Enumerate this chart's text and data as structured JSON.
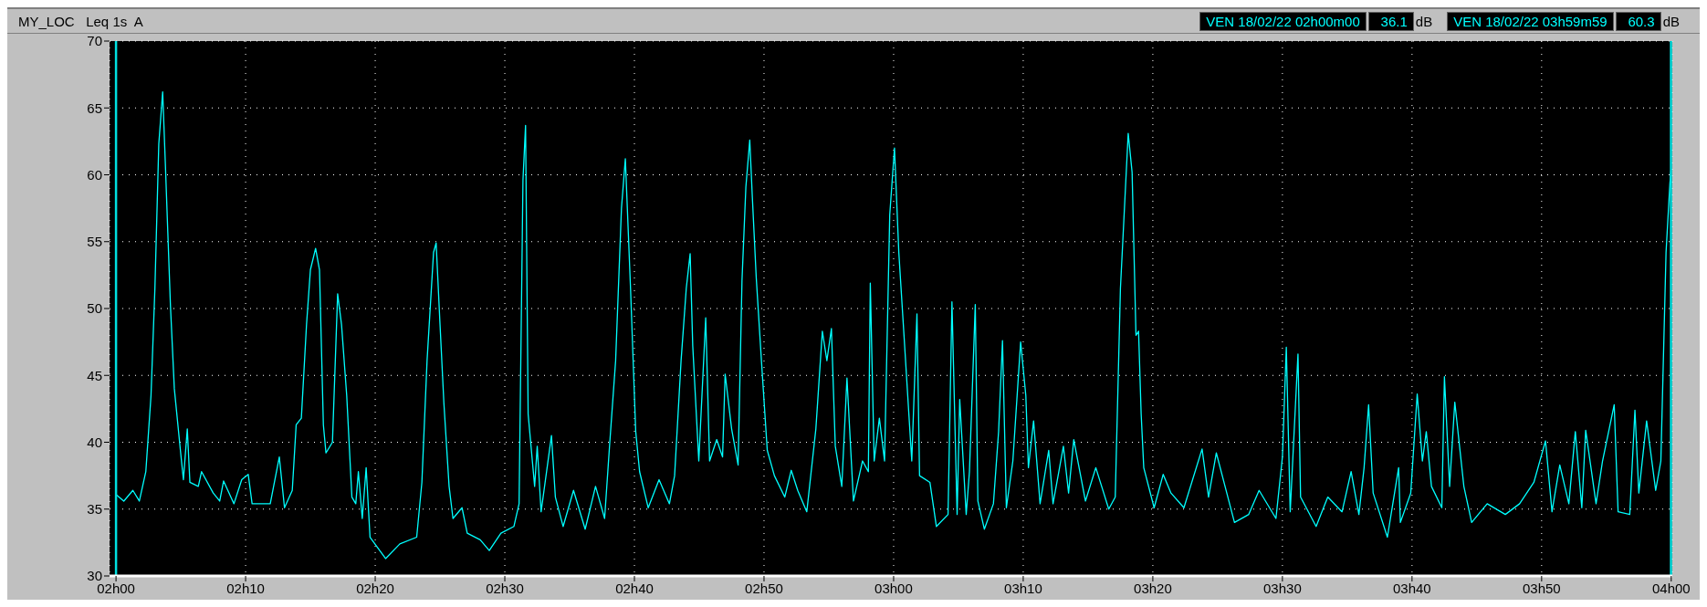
{
  "chart_data": {
    "type": "line",
    "title": "MY_LOC   Leq 1s  A",
    "annotations": [
      "VEN 18/02/22 02h00m00",
      "36.1",
      "dB",
      "VEN 18/02/22 03h59m59",
      "60.3",
      "dB"
    ],
    "xlim": [
      "--02-18T01:59:30",
      "--02-18T04:00:05"
    ],
    "xticks": [
      {
        "value": "--02-18T02:00",
        "label": "02h00"
      },
      {
        "value": "--02-18T02:10",
        "label": "02h10"
      },
      {
        "value": "--02-18T02:20",
        "label": "02h20"
      },
      {
        "value": "--02-18T02:30",
        "label": "02h30"
      },
      {
        "value": "--02-18T02:40",
        "label": "02h40"
      },
      {
        "value": "--02-18T02:50",
        "label": "02h50"
      },
      {
        "value": "--02-18T03:00",
        "label": "03h00"
      },
      {
        "value": "--02-18T03:10",
        "label": "03h10"
      },
      {
        "value": "--02-18T03:20",
        "label": "03h20"
      },
      {
        "value": "--02-18T03:30",
        "label": "03h30"
      },
      {
        "value": "--02-18T03:40",
        "label": "03h40"
      },
      {
        "value": "--02-18T03:50",
        "label": "03h50"
      },
      {
        "value": "--02-18T04:00",
        "label": "04h00"
      }
    ],
    "ylim": [
      30,
      70
    ],
    "yticks": [
      30,
      35,
      40,
      45,
      50,
      55,
      60,
      65,
      70
    ],
    "grid": true,
    "ref_lines": [
      {
        "axis": "x",
        "value": "--02-18T02:00",
        "color": "#00e0e0"
      },
      {
        "axis": "x",
        "value": "--02-18T03:59:59",
        "color": "#00e0e0"
      }
    ],
    "x": [
      "--02-18T02:00:00",
      "--02-18T02:00:36",
      "--02-18T02:01:18",
      "--02-18T02:01:48",
      "--02-18T02:02:18",
      "--02-18T02:02:42",
      "--02-18T02:03:00",
      "--02-18T02:03:18",
      "--02-18T02:03:36",
      "--02-18T02:03:48",
      "--02-18T02:04:12",
      "--02-18T02:04:30",
      "--02-18T02:04:58",
      "--02-18T02:05:12",
      "--02-18T02:05:30",
      "--02-18T02:05:42",
      "--02-18T02:06:21",
      "--02-18T02:06:36",
      "--02-18T02:07:30",
      "--02-18T02:08:00",
      "--02-18T02:08:18",
      "--02-18T02:09:06",
      "--02-18T02:09:42",
      "--02-18T02:10:12",
      "--02-18T02:10:30",
      "--02-18T02:11:54",
      "--02-18T02:12:36",
      "--02-18T02:13:00",
      "--02-18T02:13:36",
      "--02-18T02:13:54",
      "--02-18T02:14:18",
      "--02-18T02:14:42",
      "--02-18T02:15:00",
      "--02-18T02:15:24",
      "--02-18T02:15:42",
      "--02-18T02:16:00",
      "--02-18T02:16:12",
      "--02-18T02:16:42",
      "--02-18T02:17:06",
      "--02-18T02:17:24",
      "--02-18T02:17:48",
      "--02-18T02:18:12",
      "--02-18T02:18:30",
      "--02-18T02:18:42",
      "--02-18T02:19:00",
      "--02-18T02:19:18",
      "--02-18T02:19:36",
      "--02-18T02:20:48",
      "--02-18T02:21:54",
      "--02-18T02:23:12",
      "--02-18T02:23:36",
      "--02-18T02:24:00",
      "--02-18T02:24:30",
      "--02-18T02:24:42",
      "--02-18T02:25:00",
      "--02-18T02:25:18",
      "--02-18T02:25:42",
      "--02-18T02:26:00",
      "--02-18T02:26:42",
      "--02-18T02:27:06",
      "--02-18T02:28:06",
      "--02-18T02:28:48",
      "--02-18T02:29:42",
      "--02-18T02:30:42",
      "--02-18T02:31:06",
      "--02-18T02:31:24",
      "--02-18T02:31:36",
      "--02-18T02:31:48",
      "--02-18T02:32:18",
      "--02-18T02:32:30",
      "--02-18T02:32:48",
      "--02-18T02:33:36",
      "--02-18T02:33:54",
      "--02-18T02:34:30",
      "--02-18T02:35:18",
      "--02-18T02:36:12",
      "--02-18T02:37:00",
      "--02-18T02:37:42",
      "--02-18T02:38:06",
      "--02-18T02:38:33",
      "--02-18T02:39:00",
      "--02-18T02:39:18",
      "--02-18T02:39:42",
      "--02-18T02:40:06",
      "--02-18T02:40:24",
      "--02-18T02:41:04",
      "--02-18T02:41:54",
      "--02-18T02:42:42",
      "--02-18T02:43:06",
      "--02-18T02:43:36",
      "--02-18T02:44:00",
      "--02-18T02:44:18",
      "--02-18T02:44:30",
      "--02-18T02:44:58",
      "--02-18T02:45:30",
      "--02-18T02:45:48",
      "--02-18T02:46:21",
      "--02-18T02:46:48",
      "--02-18T02:47:00",
      "--02-18T02:47:30",
      "--02-18T02:48:00",
      "--02-18T02:48:18",
      "--02-18T02:48:36",
      "--02-18T02:48:54",
      "--02-18T02:49:06",
      "--02-18T02:49:24",
      "--02-18T02:49:48",
      "--02-18T02:50:15",
      "--02-18T02:50:48",
      "--02-18T02:51:36",
      "--02-18T02:52:06",
      "--02-18T02:52:36",
      "--02-18T02:53:18",
      "--02-18T02:54:00",
      "--02-18T02:54:30",
      "--02-18T02:54:51",
      "--02-18T02:55:12",
      "--02-18T02:55:30",
      "--02-18T02:56:00",
      "--02-18T02:56:24",
      "--02-18T02:56:54",
      "--02-18T02:57:36",
      "--02-18T02:58:03",
      "--02-18T02:58:12",
      "--02-18T02:58:30",
      "--02-18T02:58:54",
      "--02-18T02:59:18",
      "--02-18T02:59:42",
      "--02-18T03:00:04",
      "--02-18T03:00:24",
      "--02-18T03:00:48",
      "--02-18T03:01:24",
      "--02-18T03:01:48",
      "--02-18T03:02:00",
      "--02-18T03:02:48",
      "--02-18T03:03:18",
      "--02-18T03:04:12",
      "--02-18T03:04:30",
      "--02-18T03:04:54",
      "--02-18T03:05:06",
      "--02-18T03:05:36",
      "--02-18T03:05:51",
      "--02-18T03:06:18",
      "--02-18T03:06:30",
      "--02-18T03:07:00",
      "--02-18T03:07:42",
      "--02-18T03:08:06",
      "--02-18T03:08:24",
      "--02-18T03:08:42",
      "--02-18T03:09:12",
      "--02-18T03:09:48",
      "--02-18T03:10:12",
      "--02-18T03:10:24",
      "--02-18T03:10:48",
      "--02-18T03:11:18",
      "--02-18T03:11:58",
      "--02-18T03:12:18",
      "--02-18T03:13:06",
      "--02-18T03:13:30",
      "--02-18T03:13:54",
      "--02-18T03:14:48",
      "--02-18T03:15:36",
      "--02-18T03:16:36",
      "--02-18T03:17:06",
      "--02-18T03:17:30",
      "--02-18T03:18:06",
      "--02-18T03:18:24",
      "--02-18T03:18:42",
      "--02-18T03:18:54",
      "--02-18T03:19:06",
      "--02-18T03:19:18",
      "--02-18T03:20:06",
      "--02-18T03:20:48",
      "--02-18T03:21:24",
      "--02-18T03:22:24",
      "--02-18T03:23:48",
      "--02-18T03:24:18",
      "--02-18T03:24:54",
      "--02-18T03:26:18",
      "--02-18T03:27:24",
      "--02-18T03:28:12",
      "--02-18T03:29:30",
      "--02-18T03:30:00",
      "--02-18T03:30:18",
      "--02-18T03:30:36",
      "--02-18T03:31:12",
      "--02-18T03:31:24",
      "--02-18T03:32:36",
      "--02-18T03:33:30",
      "--02-18T03:34:36",
      "--02-18T03:35:18",
      "--02-18T03:35:54",
      "--02-18T03:36:18",
      "--02-18T03:36:39",
      "--02-18T03:37:00",
      "--02-18T03:38:06",
      "--02-18T03:38:58",
      "--02-18T03:39:06",
      "--02-18T03:39:54",
      "--02-18T03:40:24",
      "--02-18T03:40:48",
      "--02-18T03:41:06",
      "--02-18T03:41:30",
      "--02-18T03:42:18",
      "--02-18T03:42:30",
      "--02-18T03:42:54",
      "--02-18T03:43:18",
      "--02-18T03:44:00",
      "--02-18T03:44:36",
      "--02-18T03:45:48",
      "--02-18T03:47:12",
      "--02-18T03:48:18",
      "--02-18T03:49:24",
      "--02-18T03:50:18",
      "--02-18T03:50:48",
      "--02-18T03:51:24",
      "--02-18T03:52:06",
      "--02-18T03:52:36",
      "--02-18T03:53:06",
      "--02-18T03:53:24",
      "--02-18T03:54:12",
      "--02-18T03:54:42",
      "--02-18T03:55:36",
      "--02-18T03:55:54",
      "--02-18T03:56:48",
      "--02-18T03:57:12",
      "--02-18T03:57:30",
      "--02-18T03:58:06",
      "--02-18T03:58:48",
      "--02-18T03:59:12",
      "--02-18T03:59:36",
      "--02-18T03:59:54",
      "--02-18T03:59:59"
    ],
    "series": [
      {
        "color": "#00ffff",
        "values": [
          36.1,
          35.6,
          36.4,
          35.6,
          37.8,
          43.5,
          51.5,
          62.3,
          66.2,
          61.0,
          50.2,
          44.0,
          39.4,
          37.2,
          41.0,
          37.0,
          36.7,
          37.8,
          36.2,
          35.6,
          37.1,
          35.4,
          37.2,
          37.6,
          35.4,
          35.4,
          38.9,
          35.1,
          36.4,
          41.3,
          41.8,
          48.8,
          52.9,
          54.5,
          52.9,
          41.3,
          39.2,
          40.0,
          51.1,
          48.8,
          43.5,
          35.9,
          35.4,
          37.8,
          34.3,
          38.1,
          32.9,
          31.3,
          32.4,
          32.9,
          37.0,
          46.1,
          54.2,
          54.9,
          48.8,
          42.9,
          36.7,
          34.3,
          35.1,
          33.2,
          32.7,
          31.9,
          33.2,
          33.7,
          35.4,
          59.6,
          63.7,
          42.1,
          36.7,
          39.7,
          34.8,
          40.5,
          35.9,
          33.7,
          36.4,
          33.5,
          36.7,
          34.3,
          40.0,
          46.1,
          57.5,
          61.2,
          51.5,
          40.8,
          37.8,
          35.1,
          37.2,
          35.4,
          37.5,
          46.1,
          51.5,
          54.1,
          47.2,
          38.6,
          49.3,
          38.6,
          40.2,
          38.9,
          45.1,
          41.0,
          38.3,
          52.1,
          59.1,
          62.6,
          58.3,
          52.3,
          46.1,
          39.4,
          37.5,
          35.9,
          37.9,
          36.4,
          34.8,
          41.0,
          48.3,
          46.1,
          48.5,
          39.7,
          36.7,
          44.8,
          35.6,
          38.6,
          37.8,
          51.9,
          38.6,
          41.8,
          38.6,
          57.0,
          62.0,
          54.2,
          48.0,
          38.6,
          49.6,
          37.5,
          37.0,
          33.7,
          34.6,
          50.5,
          34.6,
          43.2,
          34.6,
          37.8,
          50.3,
          35.6,
          33.5,
          35.4,
          40.8,
          47.6,
          35.1,
          38.6,
          47.5,
          43.5,
          38.1,
          41.6,
          35.4,
          39.4,
          35.4,
          39.7,
          36.2,
          40.2,
          35.6,
          38.1,
          35.0,
          35.9,
          51.5,
          63.1,
          60.2,
          48.0,
          48.3,
          42.1,
          38.1,
          35.1,
          37.6,
          36.2,
          35.1,
          39.5,
          35.9,
          39.2,
          34.0,
          34.6,
          36.4,
          34.3,
          38.9,
          47.1,
          34.8,
          46.6,
          35.9,
          33.7,
          35.9,
          34.8,
          37.8,
          34.6,
          38.1,
          42.8,
          36.2,
          32.9,
          38.1,
          34.0,
          36.2,
          43.6,
          38.6,
          40.8,
          36.7,
          35.1,
          44.9,
          36.7,
          43.0,
          36.7,
          34.0,
          35.4,
          34.6,
          35.4,
          37.0,
          40.1,
          34.8,
          38.3,
          35.4,
          40.8,
          35.1,
          40.9,
          35.4,
          38.6,
          42.8,
          34.8,
          34.6,
          42.4,
          36.2,
          41.6,
          36.4,
          38.6,
          54.2,
          59.4,
          60.3
        ]
      }
    ]
  }
}
